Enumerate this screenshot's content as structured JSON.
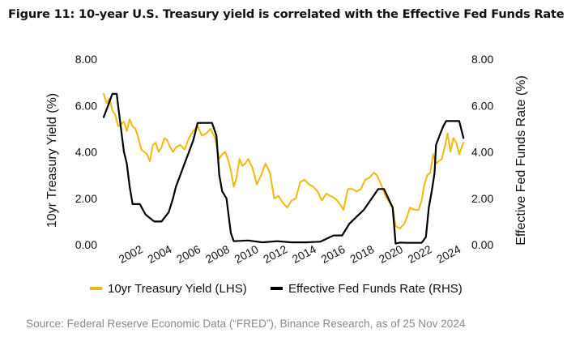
{
  "figure": {
    "title": "Figure 11: 10-year U.S. Treasury yield is correlated with the Effective Fed Funds Rate",
    "source": "Source: Federal Reserve Economic Data (“FRED”), Binance Research, as of 25 Nov 2024"
  },
  "chart_data": {
    "type": "line",
    "title": "10-year U.S. Treasury yield is correlated with the Effective Fed Funds Rate",
    "xlabel": "",
    "ylabel": "10yr Treasury Yield (%)",
    "y2label": "Effective Fed Funds Rate (%)",
    "xlim": [
      2000.0,
      2025.0
    ],
    "ylim": [
      0,
      8
    ],
    "y2lim": [
      0,
      8
    ],
    "xticks": [
      2002,
      2004,
      2006,
      2008,
      2010,
      2012,
      2014,
      2016,
      2018,
      2020,
      2022,
      2024
    ],
    "xtick_labels": [
      "2002",
      "2004",
      "2006",
      "2008",
      "2010",
      "2012",
      "2014",
      "2016",
      "2018",
      "2020",
      "2022",
      "2024"
    ],
    "yticks": [
      0,
      2,
      4,
      6,
      8
    ],
    "ytick_labels": [
      "0.00",
      "2.00",
      "4.00",
      "6.00",
      "8.00"
    ],
    "y2tick_labels": [
      "0.00",
      "2.00",
      "4.00",
      "6.00",
      "8.00"
    ],
    "grid": false,
    "legend_position": "bottom",
    "series": [
      {
        "name": "10yr Treasury Yield (LHS)",
        "color": "#F0B90B",
        "axis": "left",
        "x": [
          2000.0,
          2000.2,
          2000.4,
          2000.6,
          2000.8,
          2001.0,
          2001.2,
          2001.4,
          2001.6,
          2001.8,
          2002.0,
          2002.2,
          2002.4,
          2002.6,
          2002.8,
          2003.0,
          2003.2,
          2003.4,
          2003.6,
          2003.8,
          2004.0,
          2004.2,
          2004.4,
          2004.6,
          2004.8,
          2005.0,
          2005.3,
          2005.6,
          2005.9,
          2006.2,
          2006.5,
          2006.8,
          2007.1,
          2007.4,
          2007.7,
          2008.0,
          2008.2,
          2008.4,
          2008.6,
          2008.8,
          2009.0,
          2009.2,
          2009.4,
          2009.6,
          2009.8,
          2010.0,
          2010.3,
          2010.6,
          2010.9,
          2011.2,
          2011.5,
          2011.8,
          2012.1,
          2012.4,
          2012.7,
          2013.0,
          2013.3,
          2013.6,
          2013.9,
          2014.2,
          2014.5,
          2014.8,
          2015.1,
          2015.4,
          2015.7,
          2016.0,
          2016.3,
          2016.6,
          2016.9,
          2017.2,
          2017.5,
          2017.8,
          2018.1,
          2018.4,
          2018.7,
          2018.9,
          2019.2,
          2019.5,
          2019.8,
          2020.0,
          2020.2,
          2020.5,
          2020.8,
          2021.0,
          2021.2,
          2021.5,
          2021.8,
          2022.0,
          2022.2,
          2022.4,
          2022.6,
          2022.8,
          2023.0,
          2023.2,
          2023.4,
          2023.6,
          2023.8,
          2024.0,
          2024.2,
          2024.4,
          2024.6,
          2024.9
        ],
        "values": [
          6.5,
          6.1,
          6.3,
          5.8,
          5.6,
          5.1,
          5.2,
          5.3,
          4.9,
          5.4,
          5.1,
          5.0,
          4.6,
          4.1,
          4.0,
          3.9,
          3.6,
          4.3,
          4.4,
          4.0,
          4.2,
          4.6,
          4.5,
          4.2,
          4.0,
          4.2,
          4.3,
          4.1,
          4.6,
          4.9,
          5.1,
          4.7,
          4.8,
          5.0,
          4.6,
          3.7,
          3.9,
          4.0,
          3.7,
          3.2,
          2.5,
          2.9,
          3.7,
          3.4,
          3.5,
          3.7,
          3.3,
          2.6,
          3.0,
          3.5,
          3.1,
          2.0,
          2.1,
          1.8,
          1.6,
          1.9,
          2.0,
          2.7,
          2.8,
          2.6,
          2.5,
          2.3,
          1.9,
          2.2,
          2.1,
          2.0,
          1.8,
          1.5,
          2.4,
          2.4,
          2.3,
          2.4,
          2.8,
          2.9,
          3.1,
          3.0,
          2.6,
          2.1,
          1.8,
          1.6,
          0.8,
          0.7,
          0.9,
          1.2,
          1.6,
          1.5,
          1.5,
          1.9,
          2.6,
          3.0,
          3.1,
          3.9,
          3.5,
          3.6,
          3.7,
          4.2,
          4.8,
          4.0,
          4.6,
          4.4,
          3.9,
          4.4
        ]
      },
      {
        "name": "Effective Fed Funds Rate (RHS)",
        "color": "#000000",
        "axis": "right",
        "x": [
          2000.0,
          2000.3,
          2000.6,
          2000.9,
          2001.0,
          2001.2,
          2001.4,
          2001.6,
          2001.8,
          2002.0,
          2002.5,
          2002.9,
          2003.0,
          2003.5,
          2004.0,
          2004.5,
          2004.8,
          2005.0,
          2005.3,
          2005.6,
          2005.9,
          2006.2,
          2006.5,
          2007.0,
          2007.5,
          2007.8,
          2008.0,
          2008.2,
          2008.5,
          2008.8,
          2009.0,
          2010.0,
          2011.0,
          2012.0,
          2013.0,
          2014.0,
          2015.0,
          2015.9,
          2016.5,
          2017.0,
          2017.5,
          2018.0,
          2018.5,
          2019.0,
          2019.4,
          2019.7,
          2020.0,
          2020.2,
          2020.5,
          2021.0,
          2022.0,
          2022.3,
          2022.5,
          2022.7,
          2022.9,
          2023.0,
          2023.3,
          2023.5,
          2023.7,
          2024.0,
          2024.6,
          2024.8,
          2024.9
        ],
        "values": [
          5.5,
          6.0,
          6.5,
          6.5,
          6.0,
          5.0,
          4.0,
          3.5,
          2.5,
          1.75,
          1.75,
          1.3,
          1.25,
          1.0,
          1.0,
          1.4,
          2.0,
          2.5,
          3.0,
          3.5,
          4.0,
          4.5,
          5.25,
          5.25,
          5.25,
          4.7,
          3.0,
          2.3,
          2.0,
          0.5,
          0.15,
          0.18,
          0.1,
          0.15,
          0.1,
          0.1,
          0.13,
          0.4,
          0.4,
          0.9,
          1.2,
          1.5,
          1.95,
          2.4,
          2.4,
          2.0,
          1.6,
          0.05,
          0.09,
          0.08,
          0.08,
          0.33,
          1.6,
          2.3,
          3.1,
          4.3,
          4.8,
          5.1,
          5.33,
          5.33,
          5.33,
          4.85,
          4.6
        ]
      }
    ]
  }
}
